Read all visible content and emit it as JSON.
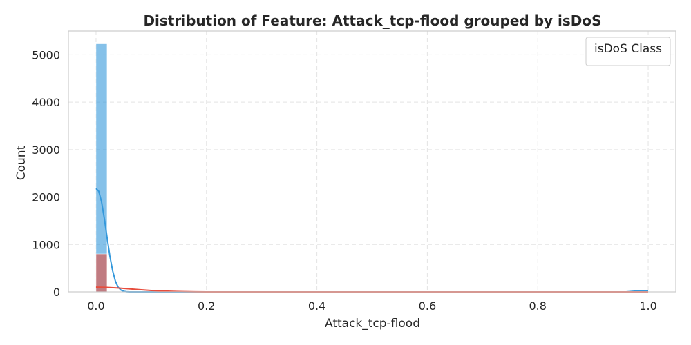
{
  "chart_data": {
    "type": "histogram",
    "title": "Distribution of Feature: Attack_tcp-flood grouped by isDoS",
    "xlabel": "Attack_tcp-flood",
    "ylabel": "Count",
    "xlim": [
      -0.05,
      1.05
    ],
    "ylim": [
      0,
      5500
    ],
    "xticks": [
      0.0,
      0.2,
      0.4,
      0.6,
      0.8,
      1.0
    ],
    "xtick_labels": [
      "0.0",
      "0.2",
      "0.4",
      "0.6",
      "0.8",
      "1.0"
    ],
    "yticks": [
      0,
      1000,
      2000,
      3000,
      4000,
      5000
    ],
    "ytick_labels": [
      "0",
      "1000",
      "2000",
      "3000",
      "4000",
      "5000"
    ],
    "grid": true,
    "legend": {
      "title": "isDoS Class",
      "location": "upper right",
      "entries": []
    },
    "bin_width": 0.02,
    "series": [
      {
        "color": "#3498db",
        "bars": [
          {
            "x0": 0.0,
            "x1": 0.02,
            "count": 5230
          }
        ],
        "kde": [
          [
            0.0,
            2180
          ],
          [
            0.005,
            2120
          ],
          [
            0.01,
            1900
          ],
          [
            0.015,
            1550
          ],
          [
            0.02,
            1150
          ],
          [
            0.025,
            760
          ],
          [
            0.03,
            450
          ],
          [
            0.035,
            230
          ],
          [
            0.04,
            100
          ],
          [
            0.045,
            40
          ],
          [
            0.05,
            12
          ],
          [
            0.055,
            3
          ],
          [
            0.06,
            0
          ],
          [
            0.2,
            0
          ],
          [
            0.4,
            0
          ],
          [
            0.6,
            0
          ],
          [
            0.8,
            0
          ],
          [
            0.96,
            0
          ],
          [
            0.975,
            15
          ],
          [
            0.985,
            28
          ],
          [
            1.0,
            30
          ]
        ]
      },
      {
        "color": "#e74c3c",
        "bars": [
          {
            "x0": 0.0,
            "x1": 0.02,
            "count": 800
          },
          {
            "x0": 0.98,
            "x1": 1.0,
            "count": 10
          }
        ],
        "kde": [
          [
            0.0,
            100
          ],
          [
            0.02,
            95
          ],
          [
            0.04,
            82
          ],
          [
            0.06,
            64
          ],
          [
            0.08,
            46
          ],
          [
            0.1,
            30
          ],
          [
            0.12,
            18
          ],
          [
            0.14,
            10
          ],
          [
            0.16,
            5
          ],
          [
            0.18,
            2
          ],
          [
            0.2,
            0
          ],
          [
            1.0,
            0
          ]
        ]
      }
    ]
  }
}
